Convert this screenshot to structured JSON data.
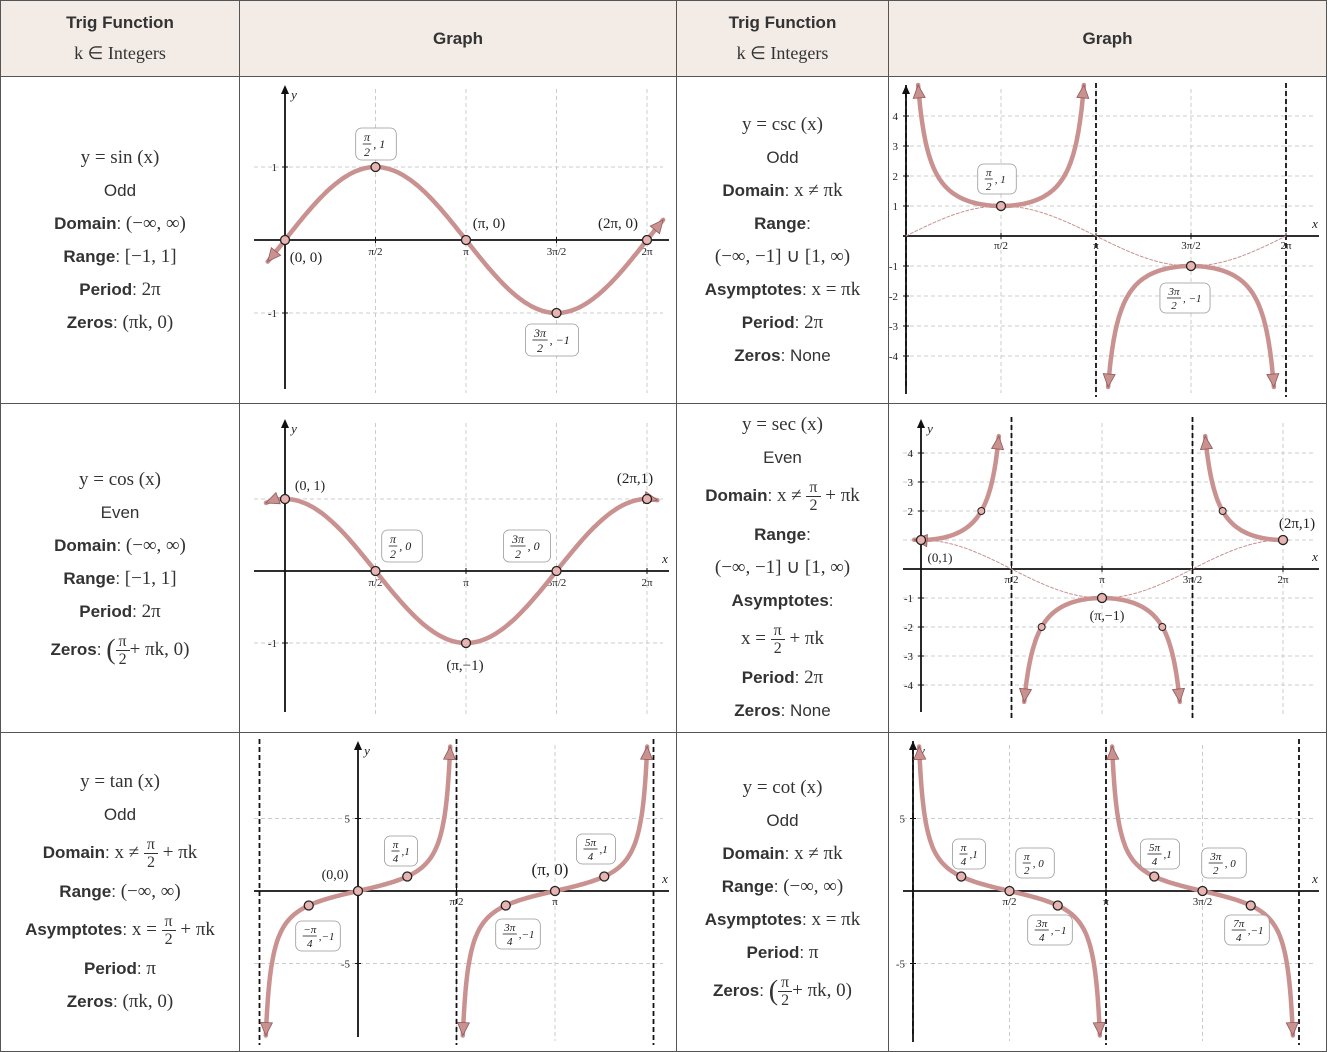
{
  "header": {
    "col1_title": "Trig Function",
    "col1_sub": "k ∈ Integers",
    "col2_title": "Graph",
    "col3_title": "Trig Function",
    "col3_sub": "k ∈ Integers",
    "col4_title": "Graph"
  },
  "labels": {
    "domain": "Domain",
    "range": "Range",
    "period": "Period",
    "zeros": "Zeros",
    "asymptotes": "Asymptotes"
  },
  "colors": {
    "curve": "#c9918f",
    "curve_dark": "#8f5a58",
    "grid": "#cccccc",
    "header_bg": "#f2ebe6",
    "border": "#555555"
  },
  "functions": {
    "sin": {
      "formula": "y = sin (x)",
      "parity": "Odd",
      "domain": "(−∞, ∞)",
      "range": "[−1, 1]",
      "period": "2π",
      "zeros": "(πk, 0)"
    },
    "csc": {
      "formula": "y = csc (x)",
      "parity": "Odd",
      "domain": "x ≠ πk",
      "range": "(−∞, −1] ∪ [1, ∞)",
      "asymptotes": "x = πk",
      "period": "2π",
      "zeros": "None"
    },
    "cos": {
      "formula": "y = cos (x)",
      "parity": "Even",
      "domain": "(−∞, ∞)",
      "range": "[−1, 1]",
      "period": "2π",
      "zeros_pre": "(",
      "zeros_num": "π",
      "zeros_den": "2",
      "zeros_post": "+ πk, 0)"
    },
    "sec": {
      "formula": "y = sec (x)",
      "parity": "Even",
      "domain_pre": "x ≠",
      "domain_num": "π",
      "domain_den": "2",
      "domain_post": "+ πk",
      "range": "(−∞, −1] ∪ [1, ∞)",
      "asym_pre": "x =",
      "asym_num": "π",
      "asym_den": "2",
      "asym_post": "+ πk",
      "period": "2π",
      "zeros": "None"
    },
    "tan": {
      "formula": "y = tan (x)",
      "parity": "Odd",
      "domain_pre": "x ≠",
      "domain_num": "π",
      "domain_den": "2",
      "domain_post": "+ πk",
      "range": "(−∞, ∞)",
      "asym_pre": "x =",
      "asym_num": "π",
      "asym_den": "2",
      "asym_post": "+ πk",
      "period": "π",
      "zeros": "(πk, 0)"
    },
    "cot": {
      "formula": "y = cot (x)",
      "parity": "Odd",
      "domain": "x ≠ πk",
      "range": "(−∞, ∞)",
      "asymptotes": "x = πk",
      "period": "π",
      "zeros_pre": "(",
      "zeros_num": "π",
      "zeros_den": "2",
      "zeros_post": "+ πk, 0)"
    }
  },
  "graphs": {
    "sin": {
      "ticks_x": [
        "π/2",
        "π",
        "3π/2",
        "2π"
      ],
      "ticks_y": [
        "1",
        "-1"
      ],
      "axis_y": "y",
      "points": [
        "(0, 0)",
        "(π, 0)",
        "(2π, 0)"
      ],
      "point_frac": [
        {
          "num": "π",
          "den": "2",
          "rest": ", 1"
        },
        {
          "num": "3π",
          "den": "2",
          "rest": ", −1"
        }
      ]
    },
    "csc": {
      "ticks_x": [
        "π/2",
        "π",
        "3π/2",
        "2π"
      ],
      "ticks_y": [
        "4",
        "3",
        "2",
        "1",
        "-1",
        "-2",
        "-3",
        "-4"
      ],
      "axis_x": "x",
      "point_frac": [
        {
          "num": "π",
          "den": "2",
          "rest": ", 1"
        },
        {
          "num": "3π",
          "den": "2",
          "rest": ", −1"
        }
      ]
    },
    "cos": {
      "ticks_x": [
        "π/2",
        "π",
        "3π/2",
        "2π"
      ],
      "ticks_y": [
        "1",
        "-1"
      ],
      "axis_x": "x",
      "axis_y": "y",
      "points": [
        "(0, 1)",
        "(2π,1)",
        "(π,−1)"
      ],
      "point_frac": [
        {
          "num": "π",
          "den": "2",
          "rest": ", 0"
        },
        {
          "num": "3π",
          "den": "2",
          "rest": ", 0"
        }
      ]
    },
    "sec": {
      "ticks_x": [
        "π/2",
        "π",
        "3π/2",
        "2π"
      ],
      "ticks_y": [
        "4",
        "3",
        "2",
        "-1",
        "-2",
        "-3",
        "-4"
      ],
      "axis_x": "x",
      "axis_y": "y",
      "points": [
        "(0,1)",
        "(2π,1)",
        "(π,−1)"
      ]
    },
    "tan": {
      "ticks_x": [
        "π/2",
        "π"
      ],
      "ticks_y": [
        "5",
        "-5"
      ],
      "axis_x": "x",
      "axis_y": "y",
      "points": [
        "(0,0)",
        "(π, 0)"
      ],
      "point_frac": [
        {
          "num": "π",
          "den": "4",
          "rest": ",1"
        },
        {
          "num": "5π",
          "den": "4",
          "rest": ",1"
        },
        {
          "num": "−π",
          "den": "4",
          "rest": ",−1"
        },
        {
          "num": "3π",
          "den": "4",
          "rest": ",−1"
        }
      ]
    },
    "cot": {
      "ticks_x": [
        "π/2",
        "π",
        "3π/2"
      ],
      "ticks_y": [
        "5",
        "-5"
      ],
      "axis_x": "x",
      "axis_y": "y",
      "point_frac": [
        {
          "num": "π",
          "den": "4",
          "rest": ",1"
        },
        {
          "num": "π",
          "den": "2",
          "rest": ", 0"
        },
        {
          "num": "5π",
          "den": "4",
          "rest": ",1"
        },
        {
          "num": "3π",
          "den": "2",
          "rest": ", 0"
        },
        {
          "num": "3π",
          "den": "4",
          "rest": ",−1"
        },
        {
          "num": "7π",
          "den": "4",
          "rest": ",−1"
        }
      ]
    }
  }
}
